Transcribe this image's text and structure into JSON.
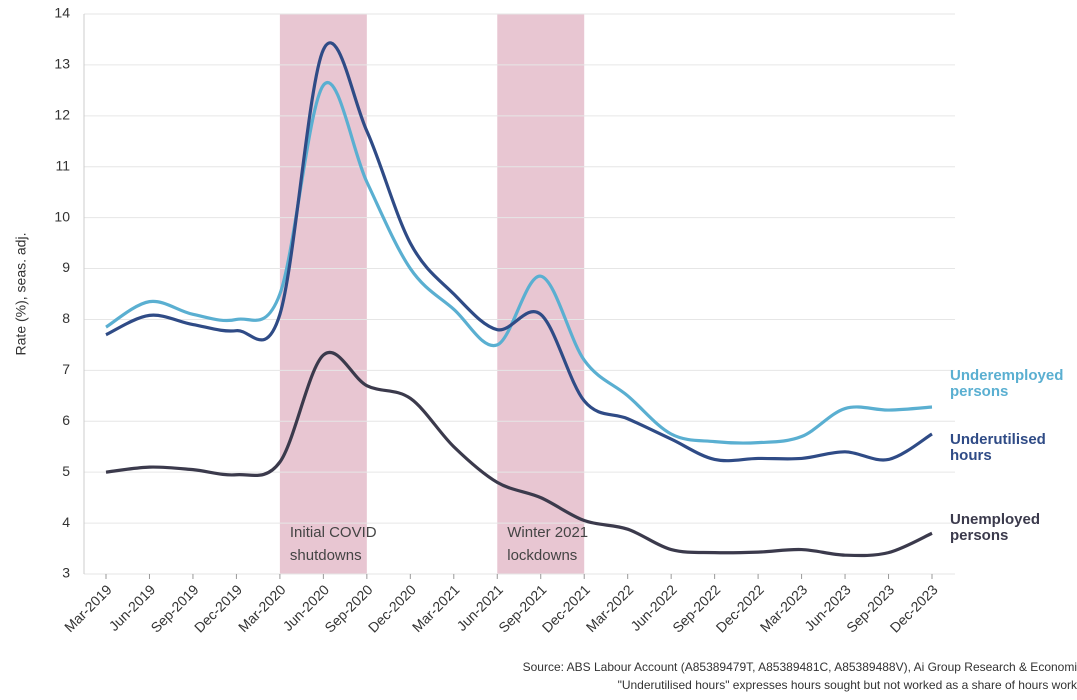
{
  "chart_data": {
    "type": "line",
    "y_label": "Rate (%), seas. adj.",
    "categories": [
      "Mar-2019",
      "Jun-2019",
      "Sep-2019",
      "Dec-2019",
      "Mar-2020",
      "Jun-2020",
      "Sep-2020",
      "Dec-2020",
      "Mar-2021",
      "Jun-2021",
      "Sep-2021",
      "Dec-2021",
      "Mar-2022",
      "Jun-2022",
      "Sep-2022",
      "Dec-2022",
      "Mar-2023",
      "Jun-2023",
      "Sep-2023",
      "Dec-2023"
    ],
    "series": [
      {
        "name": "Underemployed persons",
        "color": "#5aafd1",
        "values": [
          7.85,
          8.35,
          8.1,
          8.0,
          8.5,
          12.6,
          10.7,
          9.0,
          8.2,
          7.5,
          8.85,
          7.2,
          6.5,
          5.75,
          5.6,
          5.58,
          5.7,
          6.25,
          6.22,
          6.28
        ]
      },
      {
        "name": "Underutilised hours",
        "color": "#2f4b86",
        "values": [
          7.7,
          8.08,
          7.9,
          7.78,
          8.1,
          13.3,
          11.7,
          9.5,
          8.5,
          7.8,
          8.1,
          6.4,
          6.05,
          5.65,
          5.25,
          5.27,
          5.27,
          5.4,
          5.25,
          5.75
        ]
      },
      {
        "name": "Unemployed persons",
        "color": "#3b3a4c",
        "values": [
          5.0,
          5.1,
          5.05,
          4.95,
          5.2,
          7.3,
          6.7,
          6.45,
          5.5,
          4.8,
          4.5,
          4.05,
          3.88,
          3.48,
          3.42,
          3.43,
          3.48,
          3.37,
          3.42,
          3.8
        ]
      }
    ],
    "shaded": [
      {
        "start": "Mar-2020",
        "end": "Sep-2020",
        "label": [
          "Initial COVID",
          "shutdowns"
        ],
        "color": "#e8c6d2"
      },
      {
        "start": "Jun-2021",
        "end": "Dec-2021",
        "label": [
          "Winter 2021",
          "lockdowns"
        ],
        "color": "#e8c6d2"
      }
    ],
    "ylim": [
      3,
      14
    ],
    "yticks": [
      3,
      4,
      5,
      6,
      7,
      8,
      9,
      10,
      11,
      12,
      13,
      14
    ],
    "grid": true,
    "source": "Source: ABS Labour Account (A85389479T, A85389481C, A85389488V), Ai Group Research & Economi",
    "note": "\"Underutilised hours\" expresses hours sought but not worked as a share of hours work"
  }
}
